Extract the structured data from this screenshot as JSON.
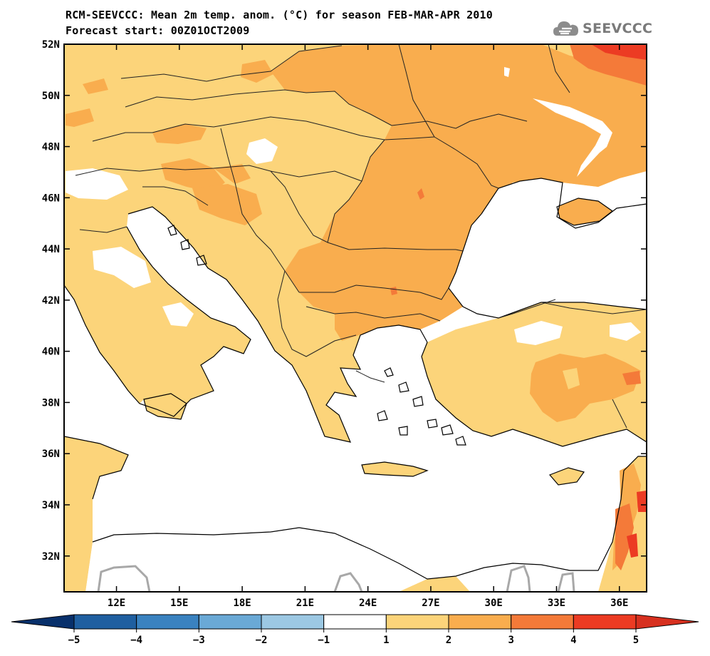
{
  "title": {
    "line1": "RCM-SEEVCCC: Mean 2m temp. anom. (°C) for season FEB-MAR-APR 2010",
    "line2": "Forecast start: 00Z01OCT2009"
  },
  "logo": {
    "text": "SEEVCCC",
    "icon": "cloud-logo-icon"
  },
  "map": {
    "lon_range": [
      9.5,
      37.3
    ],
    "lat_range": [
      30.6,
      52
    ],
    "lon_ticks": [
      {
        "value": 12,
        "label": "12E"
      },
      {
        "value": 15,
        "label": "15E"
      },
      {
        "value": 18,
        "label": "18E"
      },
      {
        "value": 21,
        "label": "21E"
      },
      {
        "value": 24,
        "label": "24E"
      },
      {
        "value": 27,
        "label": "27E"
      },
      {
        "value": 30,
        "label": "30E"
      },
      {
        "value": 33,
        "label": "33E"
      },
      {
        "value": 36,
        "label": "36E"
      }
    ],
    "lat_ticks": [
      {
        "value": 52,
        "label": "52N"
      },
      {
        "value": 50,
        "label": "50N"
      },
      {
        "value": 48,
        "label": "48N"
      },
      {
        "value": 46,
        "label": "46N"
      },
      {
        "value": 44,
        "label": "44N"
      },
      {
        "value": 42,
        "label": "42N"
      },
      {
        "value": 40,
        "label": "40N"
      },
      {
        "value": 38,
        "label": "38N"
      },
      {
        "value": 36,
        "label": "36N"
      },
      {
        "value": 34,
        "label": "34N"
      },
      {
        "value": 32,
        "label": "32N"
      }
    ]
  },
  "colorbar": {
    "boundaries": [
      "−5",
      "−4",
      "−3",
      "−2",
      "−1",
      "1",
      "2",
      "3",
      "4",
      "5"
    ],
    "colors": {
      "below": "#08306b",
      "bins": [
        "#1f5fa0",
        "#3a82c0",
        "#6aa9d6",
        "#9cc8e3",
        "#ffffff",
        "#fcd47a",
        "#f9ad4e",
        "#f47a39",
        "#ec3b23"
      ],
      "above": "#d7301f"
    }
  }
}
